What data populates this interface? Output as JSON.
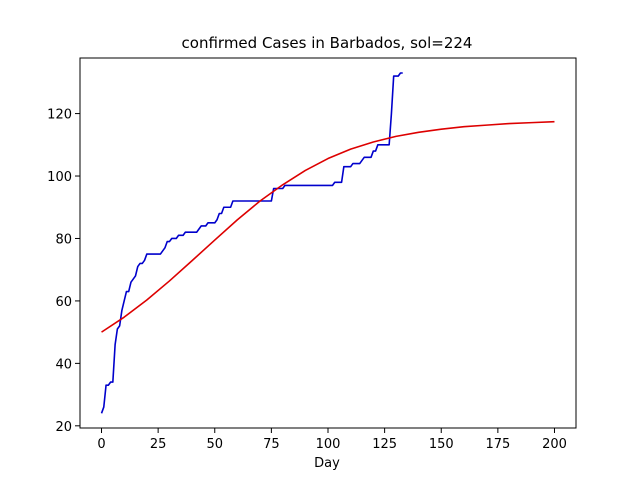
{
  "chart_data": {
    "type": "line",
    "title": "confirmed Cases in Barbados, sol=224",
    "xlabel": "Day",
    "ylabel": "",
    "xlim": [
      -9.5,
      209.5
    ],
    "ylim": [
      19.3,
      137.8
    ],
    "xticks": [
      0,
      25,
      50,
      75,
      100,
      125,
      150,
      175,
      200
    ],
    "yticks": [
      20,
      40,
      60,
      80,
      100,
      120
    ],
    "grid": false,
    "series": [
      {
        "color": "#0000cc",
        "x": [
          0,
          1,
          2,
          3,
          4,
          5,
          6,
          7,
          8,
          9,
          10,
          11,
          12,
          13,
          14,
          15,
          16,
          17,
          18,
          19,
          20,
          21,
          22,
          23,
          24,
          25,
          26,
          27,
          28,
          29,
          30,
          31,
          32,
          33,
          34,
          35,
          36,
          37,
          38,
          39,
          40,
          41,
          42,
          43,
          44,
          45,
          46,
          47,
          48,
          49,
          50,
          51,
          52,
          53,
          54,
          55,
          56,
          57,
          58,
          59,
          60,
          61,
          62,
          63,
          64,
          65,
          66,
          67,
          68,
          69,
          70,
          71,
          72,
          73,
          74,
          75,
          76,
          77,
          78,
          79,
          80,
          81,
          82,
          83,
          84,
          85,
          86,
          87,
          88,
          89,
          90,
          91,
          92,
          93,
          94,
          95,
          96,
          97,
          98,
          99,
          100,
          101,
          102,
          103,
          104,
          105,
          106,
          107,
          108,
          109,
          110,
          111,
          112,
          113,
          114,
          115,
          116,
          117,
          118,
          119,
          120,
          121,
          122,
          123,
          124,
          125,
          126,
          127,
          128,
          129,
          130,
          131,
          132,
          133
        ],
        "values": [
          24,
          26,
          33,
          33,
          34,
          34,
          46,
          51,
          52,
          57,
          60,
          63,
          63,
          66,
          67,
          68,
          71,
          72,
          72,
          73,
          75,
          75,
          75,
          75,
          75,
          75,
          75,
          76,
          77,
          79,
          79,
          80,
          80,
          80,
          81,
          81,
          81,
          82,
          82,
          82,
          82,
          82,
          82,
          83,
          84,
          84,
          84,
          85,
          85,
          85,
          85,
          86,
          88,
          88,
          90,
          90,
          90,
          90,
          92,
          92,
          92,
          92,
          92,
          92,
          92,
          92,
          92,
          92,
          92,
          92,
          92,
          92,
          92,
          92,
          92,
          92,
          96,
          96,
          96,
          96,
          96,
          97,
          97,
          97,
          97,
          97,
          97,
          97,
          97,
          97,
          97,
          97,
          97,
          97,
          97,
          97,
          97,
          97,
          97,
          97,
          97,
          97,
          97,
          98,
          98,
          98,
          98,
          103,
          103,
          103,
          103,
          104,
          104,
          104,
          104,
          105,
          106,
          106,
          106,
          106,
          108,
          108,
          110,
          110,
          110,
          110,
          110,
          110,
          120,
          132,
          132,
          132,
          133,
          133
        ]
      },
      {
        "color": "#dd0000",
        "x": [
          0,
          10,
          20,
          30,
          40,
          50,
          60,
          70,
          80,
          90,
          100,
          110,
          120,
          130,
          140,
          150,
          160,
          170,
          180,
          190,
          200
        ],
        "values": [
          50,
          54.8,
          60.3,
          66.4,
          72.9,
          79.5,
          86.0,
          92.0,
          97.2,
          101.8,
          105.6,
          108.6,
          110.9,
          112.7,
          114.0,
          115.0,
          115.8,
          116.3,
          116.8,
          117.1,
          117.4
        ]
      }
    ]
  }
}
